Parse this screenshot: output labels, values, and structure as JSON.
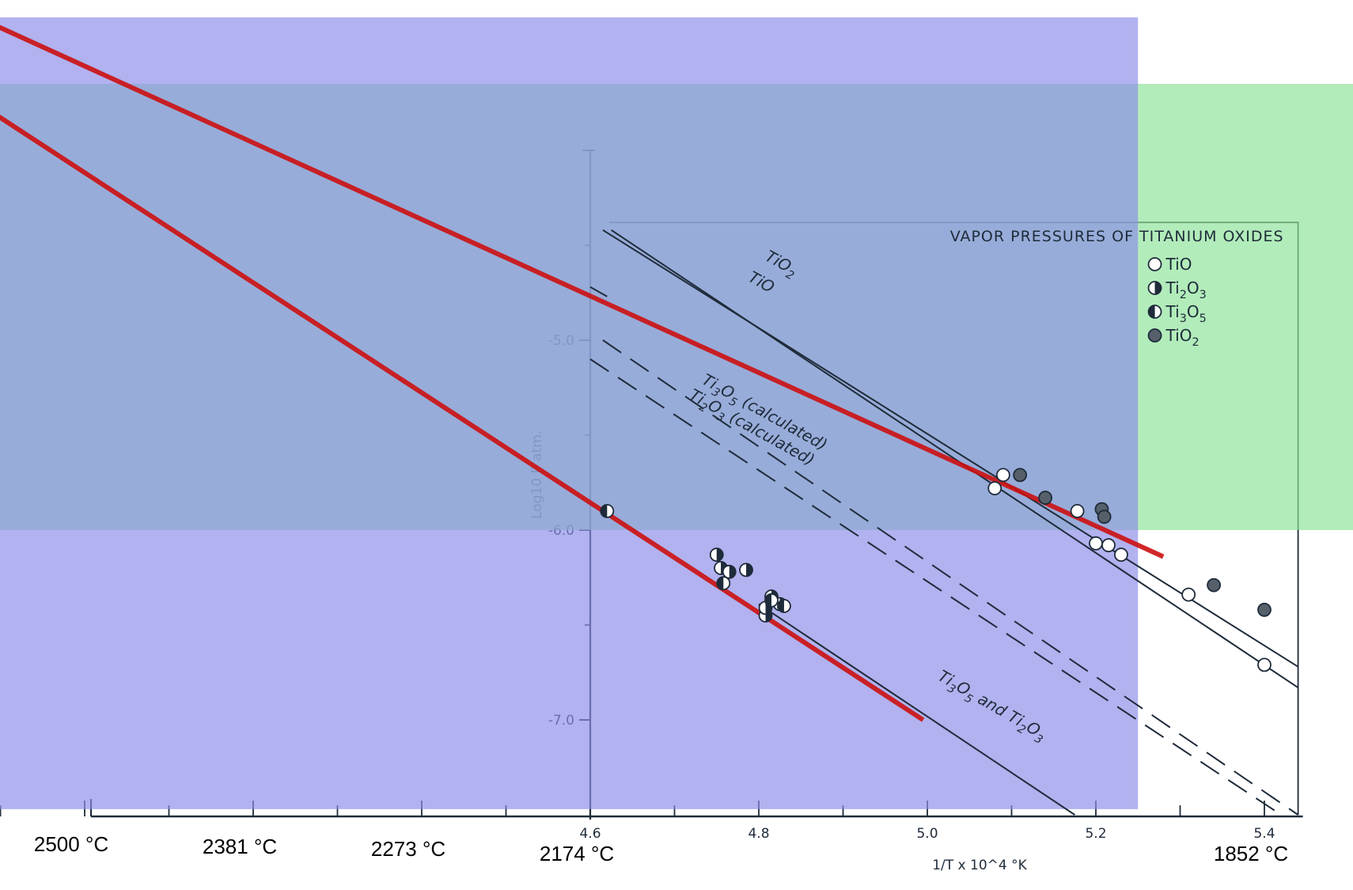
{
  "chart_data": {
    "type": "line",
    "title": "VAPOR PRESSURES OF TITANIUM OXIDES",
    "ylabel": "Log10 P atm.",
    "xlabel": "1/T x 10^4 °K",
    "xlim": [
      4.6,
      5.44
    ],
    "ylim": [
      -7.5,
      -4.0
    ],
    "x_ticks": [
      4.6,
      4.8,
      5.0,
      5.2,
      5.4
    ],
    "x_tick_labels": [
      "4.6",
      "4.8",
      "5.0",
      "5.2",
      "5.4"
    ],
    "y_ticks": [
      -5.0,
      -6.0,
      -7.0
    ],
    "y_tick_labels": [
      "-5.0",
      "-6.0",
      "-7.0"
    ],
    "celsius_labels": [
      {
        "x": 4.0,
        "label": "2500 °C"
      },
      {
        "x": 4.2,
        "label": "2381 °C"
      },
      {
        "x": 4.4,
        "label": "2273 °C"
      },
      {
        "x": 4.6,
        "label": "2174 °C"
      },
      {
        "x": 5.4,
        "label": "1852 °C"
      }
    ],
    "series": [
      {
        "name": "TiO2",
        "style": "solid",
        "x": [
          4.615,
          5.44
        ],
        "y": [
          -4.42,
          -6.72
        ],
        "label_text": "TiO2"
      },
      {
        "name": "TiO",
        "style": "solid",
        "x": [
          4.625,
          5.44
        ],
        "y": [
          -4.42,
          -6.83
        ],
        "label_text": "TiO"
      },
      {
        "name": "Ti3O5 (calculated)",
        "style": "dashed",
        "x": [
          4.615,
          5.44
        ],
        "y": [
          -5.0,
          -7.5
        ],
        "label_text": "Ti3O5 (calculated)"
      },
      {
        "name": "Ti2O3 (calculated)",
        "style": "dashed",
        "x": [
          4.6,
          5.42
        ],
        "y": [
          -5.1,
          -7.5
        ],
        "label_text": "Ti2O3 (calculated)"
      },
      {
        "name": "Ti3O5 and Ti2O3",
        "style": "solid",
        "x": [
          4.8,
          5.175
        ],
        "y": [
          -6.39,
          -7.5
        ],
        "label_text": "Ti3O5 and Ti2O3"
      },
      {
        "name": "TiO2 extrapolated",
        "style": "overlay-red",
        "x": [
          3.873,
          5.28
        ],
        "y": [
          -3.3,
          -6.14
        ]
      },
      {
        "name": "Ti3O5 and Ti2O3 extrapolated",
        "style": "overlay-red",
        "x": [
          3.88,
          4.995
        ],
        "y": [
          -3.77,
          -7.0
        ]
      }
    ],
    "points": {
      "TiO": [
        [
          5.08,
          -5.78
        ],
        [
          5.09,
          -5.71
        ],
        [
          5.178,
          -5.9
        ],
        [
          5.2,
          -6.07
        ],
        [
          5.215,
          -6.08
        ],
        [
          5.23,
          -6.13
        ],
        [
          5.31,
          -6.34
        ],
        [
          5.4,
          -6.71
        ]
      ],
      "Ti2O3": [
        [
          4.75,
          -6.13
        ],
        [
          4.755,
          -6.2
        ],
        [
          4.765,
          -6.22
        ],
        [
          4.785,
          -6.21
        ],
        [
          4.825,
          -6.39
        ],
        [
          4.815,
          -6.35
        ],
        [
          4.808,
          -6.45
        ],
        [
          4.808,
          -6.41
        ]
      ],
      "Ti3O5": [
        [
          4.62,
          -5.9
        ],
        [
          4.758,
          -6.28
        ],
        [
          4.815,
          -6.37
        ],
        [
          4.83,
          -6.4
        ]
      ],
      "TiO2": [
        [
          5.11,
          -5.71
        ],
        [
          5.14,
          -5.83
        ],
        [
          5.207,
          -5.89
        ],
        [
          5.21,
          -5.93
        ],
        [
          5.34,
          -6.29
        ],
        [
          5.4,
          -6.42
        ]
      ]
    },
    "legend": {
      "placement": "top-right",
      "items": [
        {
          "name": "TiO",
          "marker": "open"
        },
        {
          "name": "Ti2O3",
          "marker": "half"
        },
        {
          "name": "Ti3O5",
          "marker": "half-left"
        },
        {
          "name": "TiO2",
          "marker": "filled"
        }
      ]
    },
    "overlays": {
      "colors": {
        "blue_box": "#8c8ee8",
        "green_box": "#8ee39a",
        "red_line": "#cc1010"
      },
      "blue_box": {
        "x": [
          3.84,
          5.06
        ],
        "y": [
          -3.3,
          -7.47
        ]
      },
      "green_box": {
        "x": [
          3.71,
          5.2
        ],
        "y": [
          -3.65,
          -6.0
        ]
      }
    },
    "grid": false
  }
}
